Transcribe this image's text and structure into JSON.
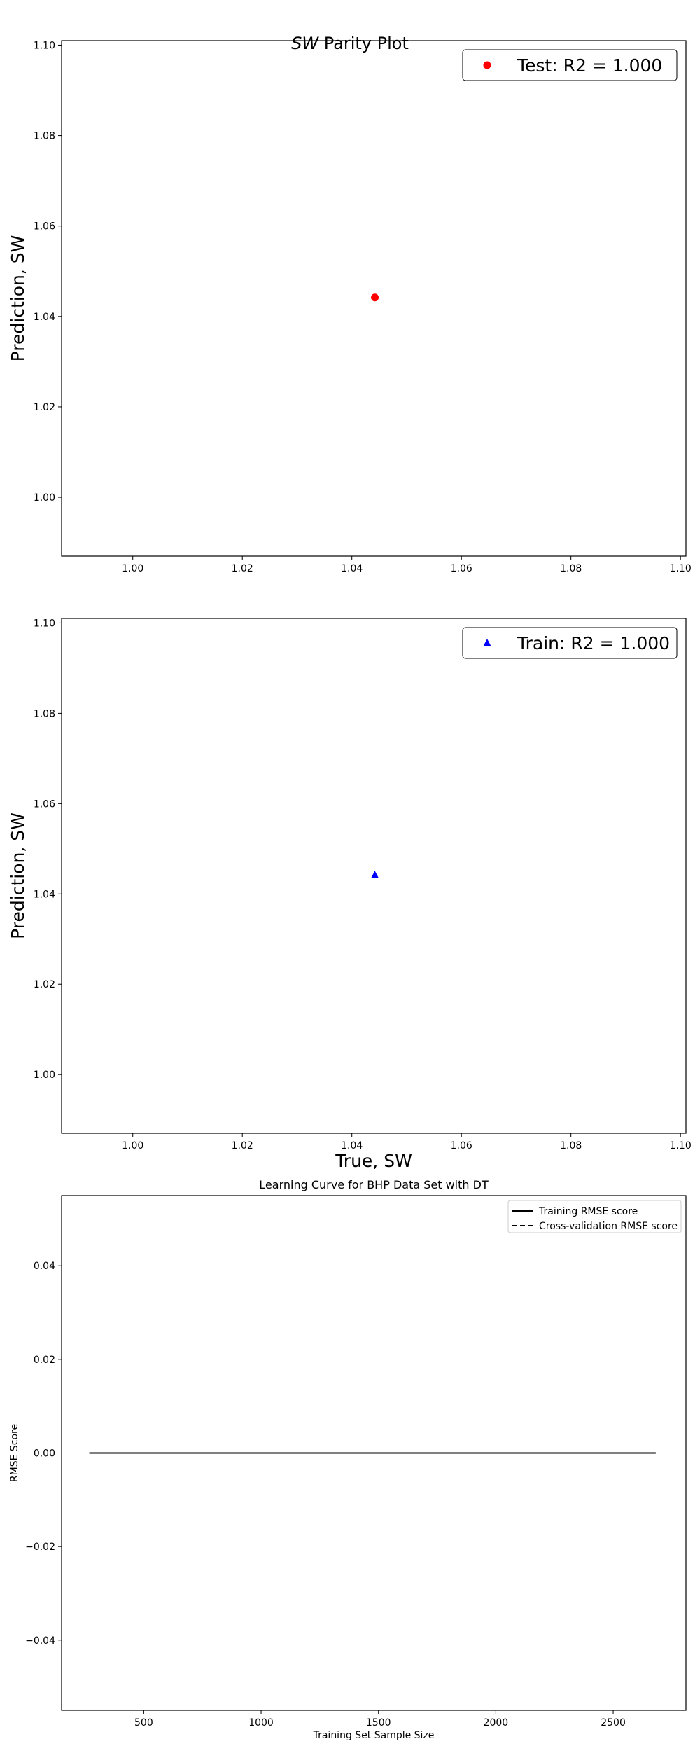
{
  "figure": {
    "suptitle_italic": "SW",
    "suptitle_rest": " Parity Plot"
  },
  "chart_data": [
    {
      "type": "scatter",
      "title": "",
      "xlabel": "",
      "ylabel": "Prediction, SW",
      "xlim": [
        0.987,
        1.101
      ],
      "ylim": [
        0.987,
        1.101
      ],
      "xticks": [
        1.0,
        1.02,
        1.04,
        1.06,
        1.08,
        1.1
      ],
      "yticks": [
        1.0,
        1.02,
        1.04,
        1.06,
        1.08,
        1.1
      ],
      "tick_decimals": 2,
      "legend_position": "top-right",
      "series": [
        {
          "name": "Test: R2 =  1.000",
          "marker": "circle",
          "color": "#ff0000",
          "points": [
            {
              "x": 1.0442,
              "y": 1.0442
            }
          ]
        }
      ]
    },
    {
      "type": "scatter",
      "title": "",
      "xlabel": "True, SW",
      "ylabel": "Prediction, SW",
      "xlim": [
        0.987,
        1.101
      ],
      "ylim": [
        0.987,
        1.101
      ],
      "xticks": [
        1.0,
        1.02,
        1.04,
        1.06,
        1.08,
        1.1
      ],
      "yticks": [
        1.0,
        1.02,
        1.04,
        1.06,
        1.08,
        1.1
      ],
      "tick_decimals": 2,
      "legend_position": "top-right",
      "series": [
        {
          "name": "Train: R2 =  1.000",
          "marker": "triangle",
          "color": "#0000ff",
          "points": [
            {
              "x": 1.0442,
              "y": 1.0442
            }
          ]
        }
      ]
    },
    {
      "type": "line",
      "title": "Learning Curve for BHP Data Set with DT",
      "xlabel": "Training Set Sample Size",
      "ylabel": "RMSE Score",
      "xlim": [
        150,
        2810
      ],
      "ylim": [
        -0.055,
        0.055
      ],
      "xticks": [
        500,
        1000,
        1500,
        2000,
        2500
      ],
      "yticks": [
        -0.04,
        -0.02,
        0.0,
        0.02,
        0.04
      ],
      "tick_decimals": 2,
      "legend_position": "top-right",
      "series": [
        {
          "name": "Training RMSE score",
          "style": "solid",
          "color": "#000000",
          "x": [
            268,
            2681
          ],
          "y": [
            0.0,
            0.0
          ]
        },
        {
          "name": "Cross-validation RMSE score",
          "style": "dashed",
          "color": "#000000",
          "x": [
            268,
            2681
          ],
          "y": [
            0.0,
            0.0
          ]
        }
      ]
    }
  ]
}
